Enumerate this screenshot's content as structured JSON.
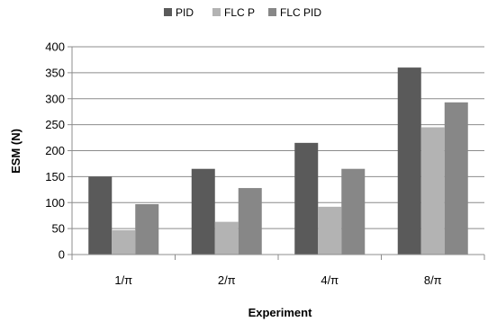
{
  "chart_data": {
    "type": "bar",
    "categories": [
      "1/π",
      "2/π",
      "4/π",
      "8/π"
    ],
    "series": [
      {
        "name": "PID",
        "values": [
          150,
          165,
          215,
          360
        ],
        "color": "#5a5a5a"
      },
      {
        "name": "FLC P",
        "values": [
          47,
          63,
          92,
          245
        ],
        "color": "#b3b3b3"
      },
      {
        "name": "FLC PID",
        "values": [
          97,
          128,
          165,
          293
        ],
        "color": "#878787"
      }
    ],
    "xlabel": "Experiment",
    "ylabel": "ESM (N)",
    "ylim": [
      0,
      400
    ],
    "yticks": [
      0,
      50,
      100,
      150,
      200,
      250,
      300,
      350,
      400
    ],
    "grid": true,
    "legend_position": "top"
  }
}
